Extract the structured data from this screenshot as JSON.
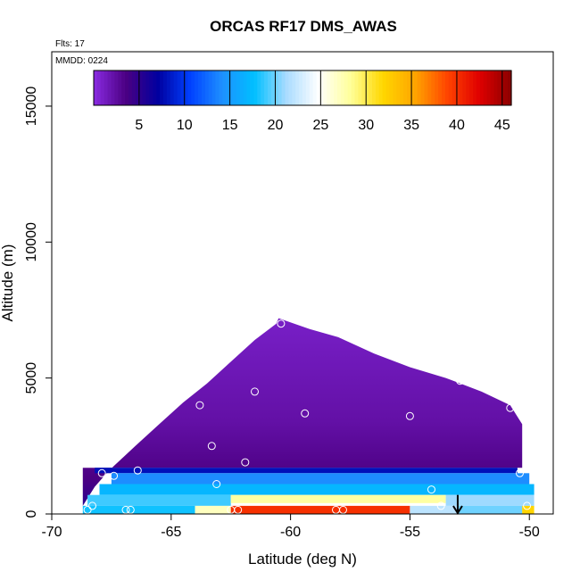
{
  "chart_data": {
    "type": "heatmap",
    "title": "ORCAS RF17 DMS_AWAS",
    "flights_note": "Flts: 17",
    "date_note": "MMDD: 0224",
    "xlabel": "Latitude (deg N)",
    "ylabel": "Altitude (m)",
    "xlim": [
      -70,
      -49
    ],
    "ylim": [
      0,
      17000
    ],
    "x_ticks": [
      -70,
      -65,
      -60,
      -55,
      -50
    ],
    "y_ticks": [
      0,
      5000,
      10000,
      15000
    ],
    "colorbar": {
      "range": [
        0,
        46
      ],
      "ticks": [
        5,
        10,
        15,
        20,
        25,
        30,
        35,
        40,
        45
      ],
      "palette": [
        "#8a2be2",
        "#4b0082",
        "#0000a0",
        "#0040ff",
        "#1e90ff",
        "#00bfff",
        "#aadcff",
        "#ffffff",
        "#ffff99",
        "#ffd700",
        "#ffa500",
        "#ff4500",
        "#e00000",
        "#8b0000"
      ]
    },
    "envelope_top": [
      {
        "x": -68.7,
        "y": 300
      },
      {
        "x": -68.2,
        "y": 1000
      },
      {
        "x": -67.6,
        "y": 1600
      },
      {
        "x": -66.5,
        "y": 2500
      },
      {
        "x": -65.5,
        "y": 3300
      },
      {
        "x": -64.5,
        "y": 4100
      },
      {
        "x": -63.5,
        "y": 4800
      },
      {
        "x": -62.5,
        "y": 5600
      },
      {
        "x": -61.5,
        "y": 6400
      },
      {
        "x": -60.6,
        "y": 7000
      },
      {
        "x": -60.5,
        "y": 7200
      },
      {
        "x": -59.2,
        "y": 6800
      },
      {
        "x": -58,
        "y": 6500
      },
      {
        "x": -56.5,
        "y": 5900
      },
      {
        "x": -55,
        "y": 5400
      },
      {
        "x": -53.5,
        "y": 5000
      },
      {
        "x": -52,
        "y": 4500
      },
      {
        "x": -50.8,
        "y": 4000
      },
      {
        "x": -50.3,
        "y": 3300
      },
      {
        "x": -50.3,
        "y": 1000
      }
    ],
    "bands": [
      {
        "x1": -68.2,
        "x2": -50.5,
        "y1": 1500,
        "y2": 1700,
        "value": 8
      },
      {
        "x1": -67.5,
        "x2": -50.0,
        "y1": 1100,
        "y2": 1500,
        "value": 14
      },
      {
        "x1": -68.0,
        "x2": -49.8,
        "y1": 700,
        "y2": 1100,
        "value": 17
      },
      {
        "x1": -68.5,
        "x2": -62.5,
        "y1": 300,
        "y2": 700,
        "value": 19
      },
      {
        "x1": -62.5,
        "x2": -53.5,
        "y1": 400,
        "y2": 700,
        "value": 28
      },
      {
        "x1": -53.5,
        "x2": -49.8,
        "y1": 300,
        "y2": 700,
        "value": 21
      },
      {
        "x1": -68.7,
        "x2": -64.0,
        "y1": 0,
        "y2": 300,
        "value": 18
      },
      {
        "x1": -64.0,
        "x2": -62.5,
        "y1": 0,
        "y2": 300,
        "value": 27
      },
      {
        "x1": -62.5,
        "x2": -55.0,
        "y1": 0,
        "y2": 300,
        "value": 40
      },
      {
        "x1": -55.0,
        "x2": -53.0,
        "y1": 0,
        "y2": 300,
        "value": 22
      },
      {
        "x1": -53.0,
        "x2": -50.3,
        "y1": 0,
        "y2": 300,
        "value": 20
      },
      {
        "x1": -50.3,
        "x2": -49.8,
        "y1": 0,
        "y2": 300,
        "value": 32
      }
    ],
    "sample_points": [
      {
        "x": -60.4,
        "y": 7000
      },
      {
        "x": -61.5,
        "y": 4500
      },
      {
        "x": -63.8,
        "y": 4000
      },
      {
        "x": -59.4,
        "y": 3700
      },
      {
        "x": -55.0,
        "y": 3600
      },
      {
        "x": -52.9,
        "y": 4900
      },
      {
        "x": -50.8,
        "y": 3900
      },
      {
        "x": -63.3,
        "y": 2500
      },
      {
        "x": -61.9,
        "y": 1900
      },
      {
        "x": -66.4,
        "y": 1600
      },
      {
        "x": -67.4,
        "y": 1400
      },
      {
        "x": -67.9,
        "y": 1500
      },
      {
        "x": -63.1,
        "y": 1100
      },
      {
        "x": -54.1,
        "y": 900
      },
      {
        "x": -50.4,
        "y": 1500
      },
      {
        "x": -68.3,
        "y": 300
      },
      {
        "x": -68.5,
        "y": 150
      },
      {
        "x": -66.9,
        "y": 150
      },
      {
        "x": -66.7,
        "y": 150
      },
      {
        "x": -62.5,
        "y": 150
      },
      {
        "x": -62.2,
        "y": 150
      },
      {
        "x": -58.1,
        "y": 150
      },
      {
        "x": -57.8,
        "y": 150
      },
      {
        "x": -53.7,
        "y": 300
      },
      {
        "x": -50.1,
        "y": 300
      }
    ],
    "arrow": {
      "x": -53.0,
      "y_from": 700,
      "y_to": 0
    }
  }
}
